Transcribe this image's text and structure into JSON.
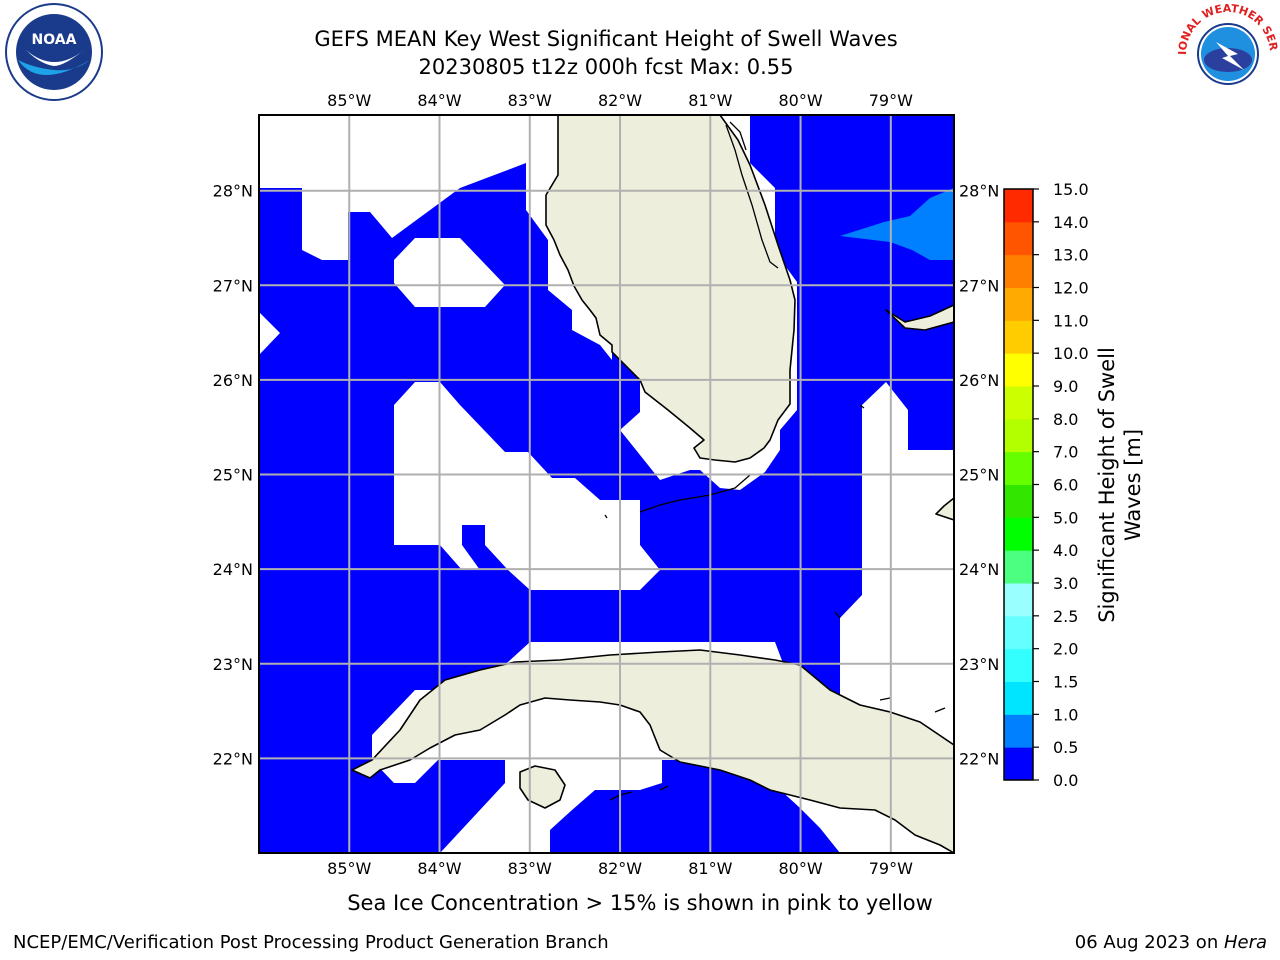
{
  "title": {
    "line1": "GEFS MEAN Key West Significant Height of Swell Waves",
    "line2": "20230805 t12z 000h fcst   Max: 0.55"
  },
  "map": {
    "extent": {
      "lon_min": -86.0,
      "lon_max": -78.3,
      "lat_min": 21.0,
      "lat_max": 28.8
    },
    "lon_ticks": [
      -85,
      -84,
      -83,
      -82,
      -81,
      -80,
      -79
    ],
    "lon_labels": [
      "85°W",
      "84°W",
      "83°W",
      "82°W",
      "81°W",
      "80°W",
      "79°W"
    ],
    "lat_ticks": [
      28,
      27,
      26,
      25,
      24,
      23,
      22
    ],
    "lat_labels": [
      "28°N",
      "27°N",
      "26°N",
      "25°N",
      "24°N",
      "23°N",
      "22°N"
    ],
    "gridlines": true,
    "colors": {
      "land": "#eeeedd",
      "water_low": "#0000ff",
      "water_mid": "#0080ff",
      "no_data": "#ffffff",
      "coast": "#000000",
      "grid": "#b0b0b0"
    }
  },
  "colorbar": {
    "label": "Significant Height of Swell Waves [m]",
    "levels": [
      "0.0",
      "0.5",
      "1.0",
      "1.5",
      "2.0",
      "2.5",
      "3.0",
      "4.0",
      "5.0",
      "6.0",
      "7.0",
      "8.0",
      "9.0",
      "10.0",
      "11.0",
      "12.0",
      "13.0",
      "14.0",
      "15.0"
    ],
    "colors": [
      "#0000ff",
      "#0080ff",
      "#00e5ff",
      "#33ffff",
      "#66ffff",
      "#99ffff",
      "#4dff80",
      "#00ff00",
      "#33e600",
      "#66ff00",
      "#b3ff00",
      "#ccff00",
      "#ffff00",
      "#ffcc00",
      "#ffaa00",
      "#ff8000",
      "#ff5500",
      "#ff2a00"
    ]
  },
  "note": "Sea Ice Concentration > 15% is shown in pink to yellow",
  "footer": {
    "left": "NCEP/EMC/Verification Post Processing Product Generation Branch",
    "date": "06 Aug 2023 on ",
    "host": "Hera"
  },
  "logos": {
    "noaa_text": "NOAA",
    "nws_text": "NATIONAL WEATHER SERVICE"
  }
}
